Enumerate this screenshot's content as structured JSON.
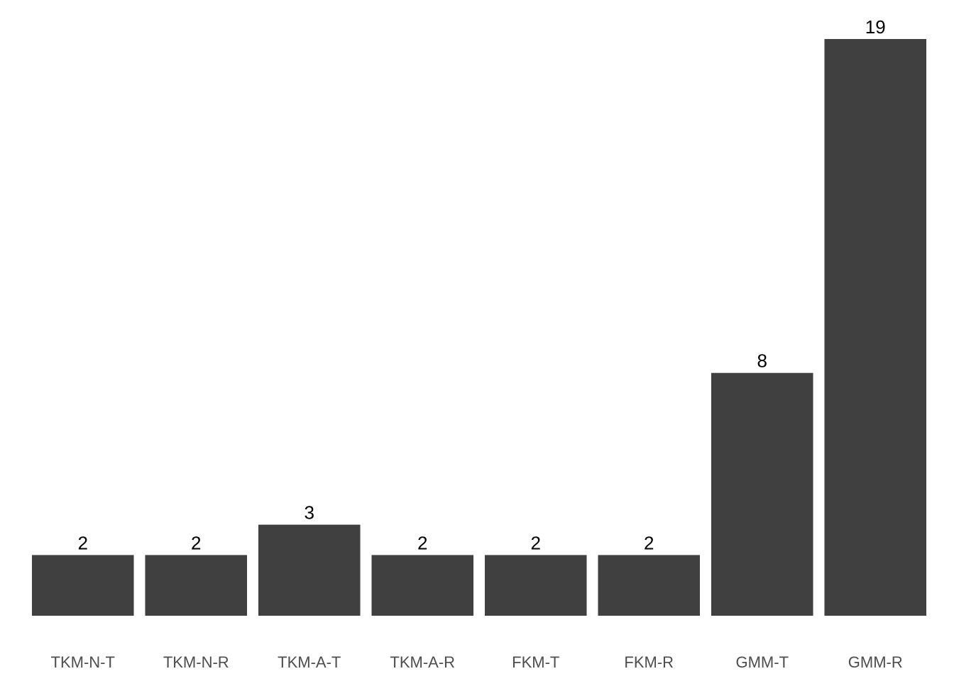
{
  "chart_data": {
    "type": "bar",
    "categories": [
      "TKM-N-T",
      "TKM-N-R",
      "TKM-A-T",
      "TKM-A-R",
      "FKM-T",
      "FKM-R",
      "GMM-T",
      "GMM-R"
    ],
    "values": [
      2,
      2,
      3,
      2,
      2,
      2,
      8,
      19
    ],
    "title": "",
    "xlabel": "",
    "ylabel": "",
    "ylim": [
      0,
      19
    ],
    "grid": false,
    "legend": "none",
    "data_labels": true,
    "bar_color": "#404040"
  }
}
